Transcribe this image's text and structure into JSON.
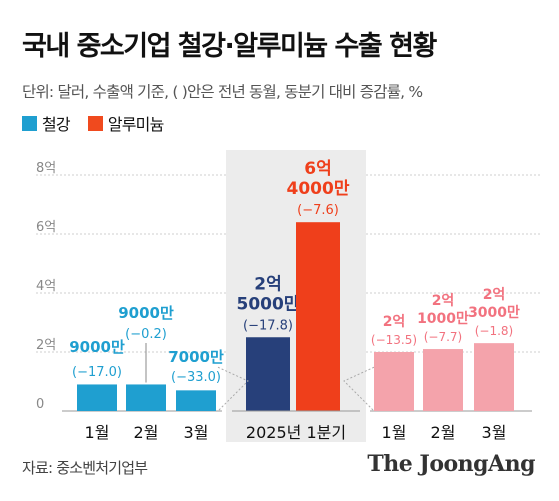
{
  "title": "국내 중소기업 철강·알루미늄 수출 현황",
  "unit_note": "단위: 달러, 수출액 기준, ( )안은 전년 동월, 동분기 대비 증감률, %",
  "legend": [
    {
      "label": "철강",
      "color": "#1f9fd0"
    },
    {
      "label": "알루미늄",
      "color": "#f04a1e"
    }
  ],
  "source": "자료: 중소벤처기업부",
  "logo": "The JoongAng",
  "colors": {
    "steel_monthly": "#1f9fd0",
    "steel_quarter": "#27407a",
    "aluminum_quarter": "#ef3f1b",
    "aluminum_monthly": "#f4a3ab",
    "quarter_panel": "#ececec",
    "grid": "#cfcfcf"
  },
  "chart_data": {
    "type": "bar",
    "title": "국내 중소기업 철강·알루미늄 수출 현황",
    "unit": "단위: 달러, 수출액 기준, ( )안은 전년 동월, 동분기 대비 증감률, %",
    "y_ticks": [
      "0",
      "2억",
      "4억",
      "6억",
      "8억"
    ],
    "ylim": [
      0,
      800000000
    ],
    "grid": true,
    "panels": [
      {
        "name": "철강",
        "categories": [
          "1월",
          "2월",
          "3월"
        ],
        "values": [
          90000000,
          90000000,
          70000000
        ],
        "value_labels": [
          "9000만",
          "9000만",
          "7000만"
        ],
        "change_labels": [
          "(−17.0)",
          "(−0.2)",
          "(−33.0)"
        ]
      },
      {
        "name": "2025년 1분기",
        "categories": [
          "2025년 1분기"
        ],
        "series": [
          {
            "name": "철강",
            "values": [
              250000000
            ],
            "value_labels": [
              "2억\n5000만"
            ],
            "change_labels": [
              "(−17.8)"
            ]
          },
          {
            "name": "알루미늄",
            "values": [
              640000000
            ],
            "value_labels": [
              "6억\n4000만"
            ],
            "change_labels": [
              "(−7.6)"
            ]
          }
        ]
      },
      {
        "name": "알루미늄",
        "categories": [
          "1월",
          "2월",
          "3월"
        ],
        "values": [
          200000000,
          210000000,
          230000000
        ],
        "value_labels": [
          "2억",
          "2억\n1000만",
          "2억\n3000만"
        ],
        "change_labels": [
          "(−13.5)",
          "(−7.7)",
          "(−1.8)"
        ]
      }
    ]
  }
}
